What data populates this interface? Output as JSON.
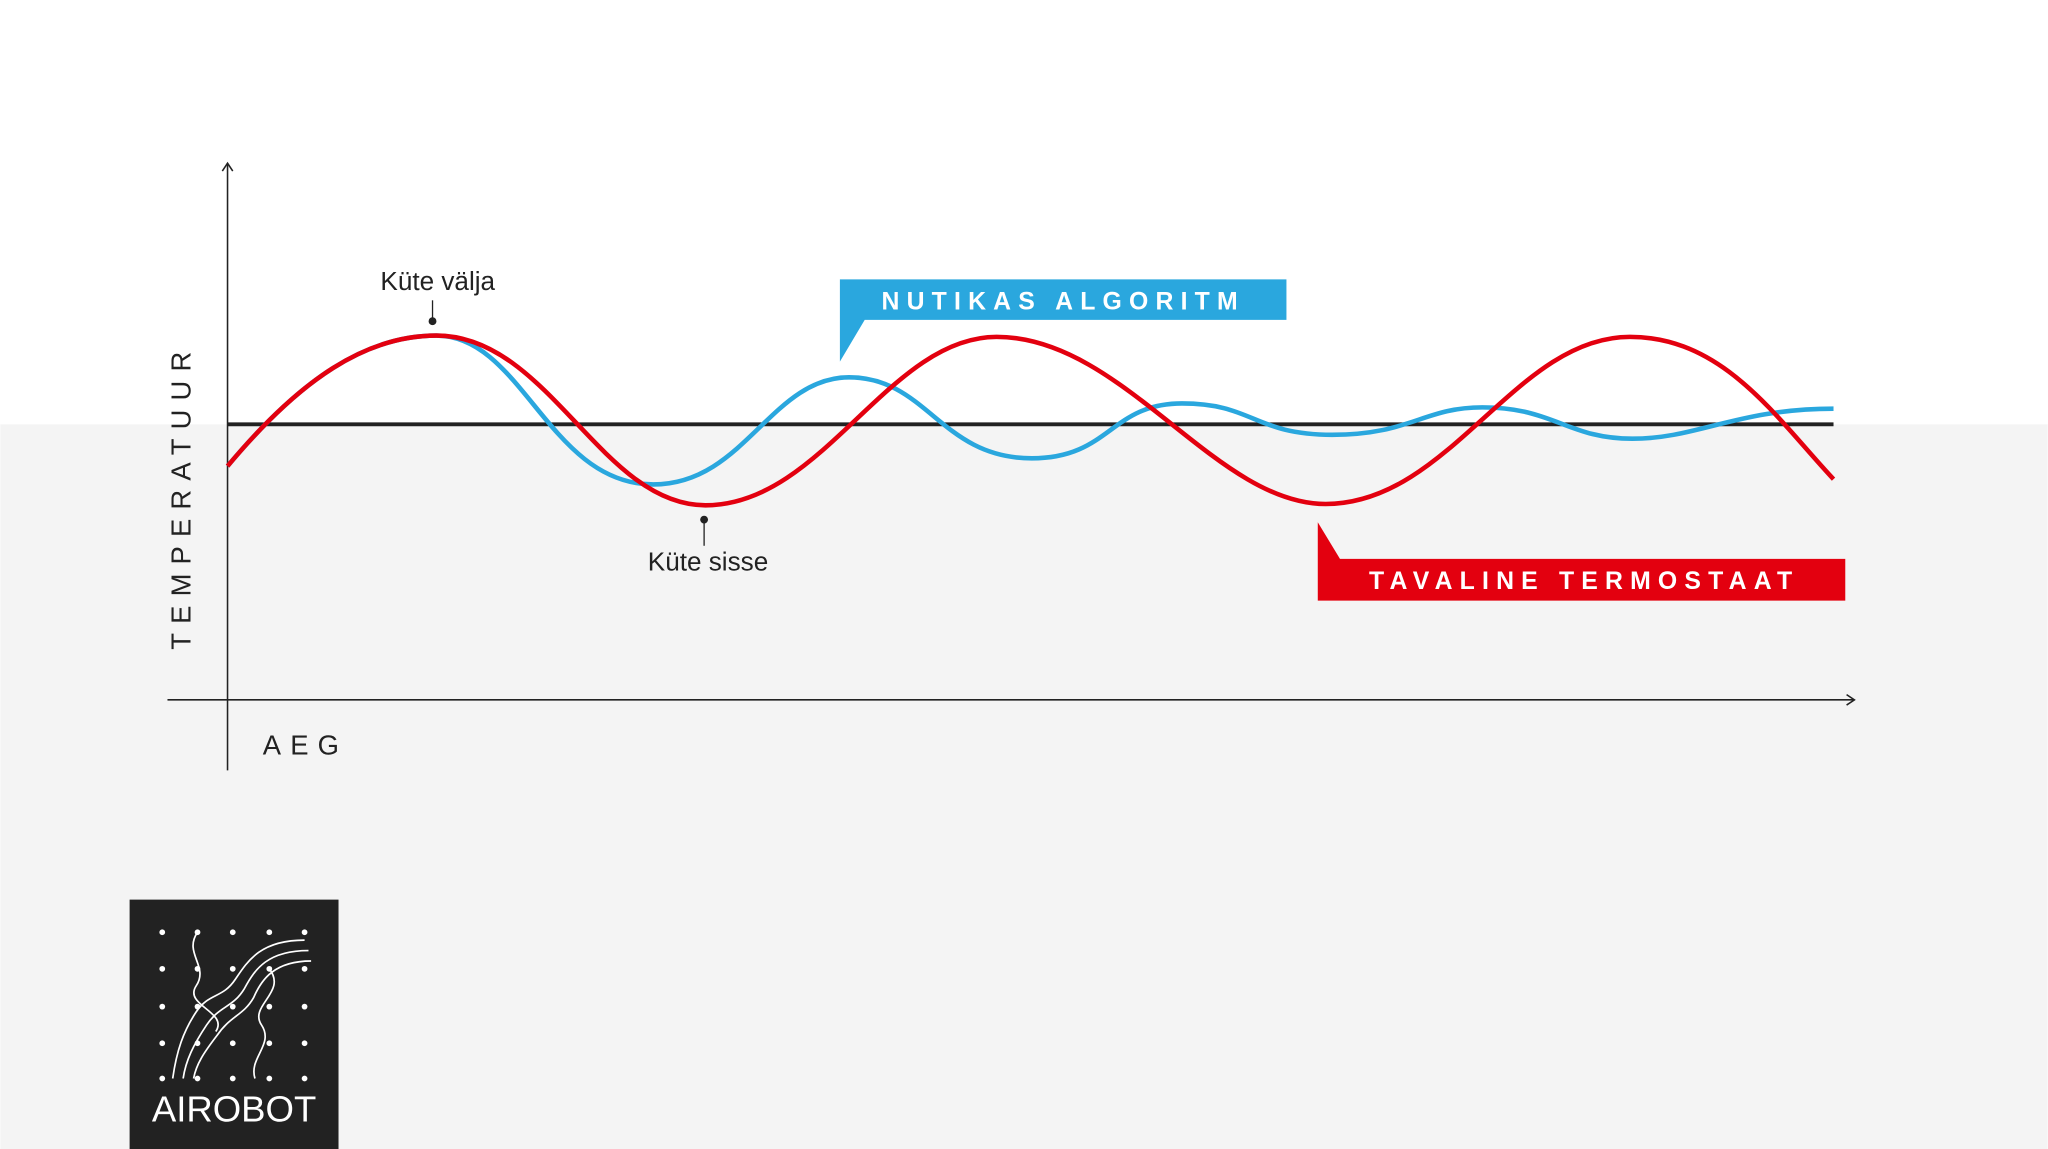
{
  "axes": {
    "y": "TEMPERATUUR",
    "x": "AEG"
  },
  "annotations": {
    "heat_off": "Küte välja",
    "heat_on": "Küte sisse"
  },
  "labels": {
    "smart": "NUTIKAS ALGORITM",
    "regular": "TAVALINE TERMOSTAAT"
  },
  "logo": "AIROBOT"
}
